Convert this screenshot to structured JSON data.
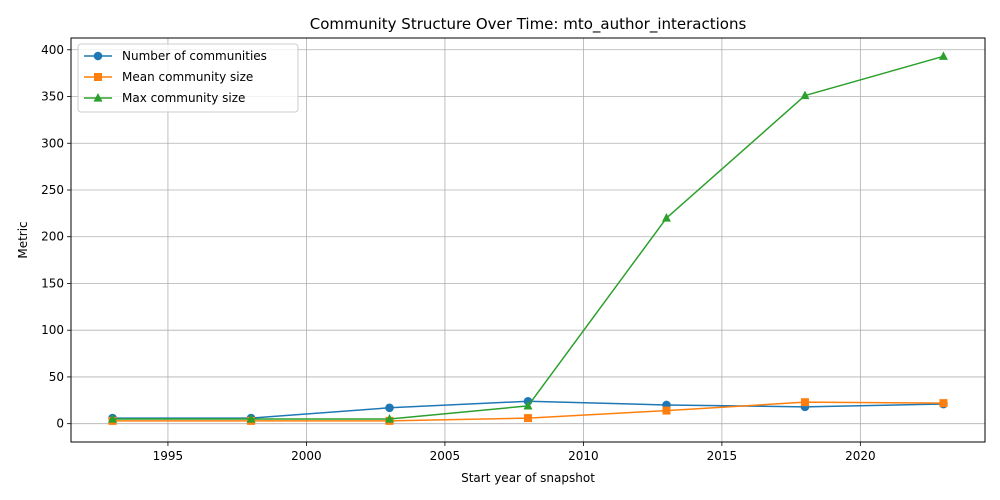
{
  "chart_data": {
    "type": "line",
    "title": "Community Structure Over Time: mto_author_interactions",
    "xlabel": "Start year of snapshot",
    "ylabel": "Metric",
    "xlim": [
      1991.5,
      2024.5
    ],
    "ylim": [
      -19.6,
      412.6
    ],
    "xticks": [
      1995,
      2000,
      2005,
      2010,
      2015,
      2020
    ],
    "yticks": [
      0,
      50,
      100,
      150,
      200,
      250,
      300,
      350,
      400
    ],
    "grid": true,
    "legend_position": "top-left",
    "x": [
      1993,
      1998,
      2003,
      2008,
      2013,
      2018,
      2023
    ],
    "series": [
      {
        "name": "Number of communities",
        "color": "#1f77b4",
        "marker": "circle",
        "values": [
          6,
          6,
          17,
          24,
          20,
          18,
          21
        ]
      },
      {
        "name": "Mean community size",
        "color": "#ff7f0e",
        "marker": "square",
        "values": [
          3,
          3,
          3,
          6,
          14,
          23,
          22
        ]
      },
      {
        "name": "Max community size",
        "color": "#2ca02c",
        "marker": "triangle",
        "values": [
          5,
          5,
          5,
          19,
          220,
          351,
          393
        ]
      }
    ]
  }
}
